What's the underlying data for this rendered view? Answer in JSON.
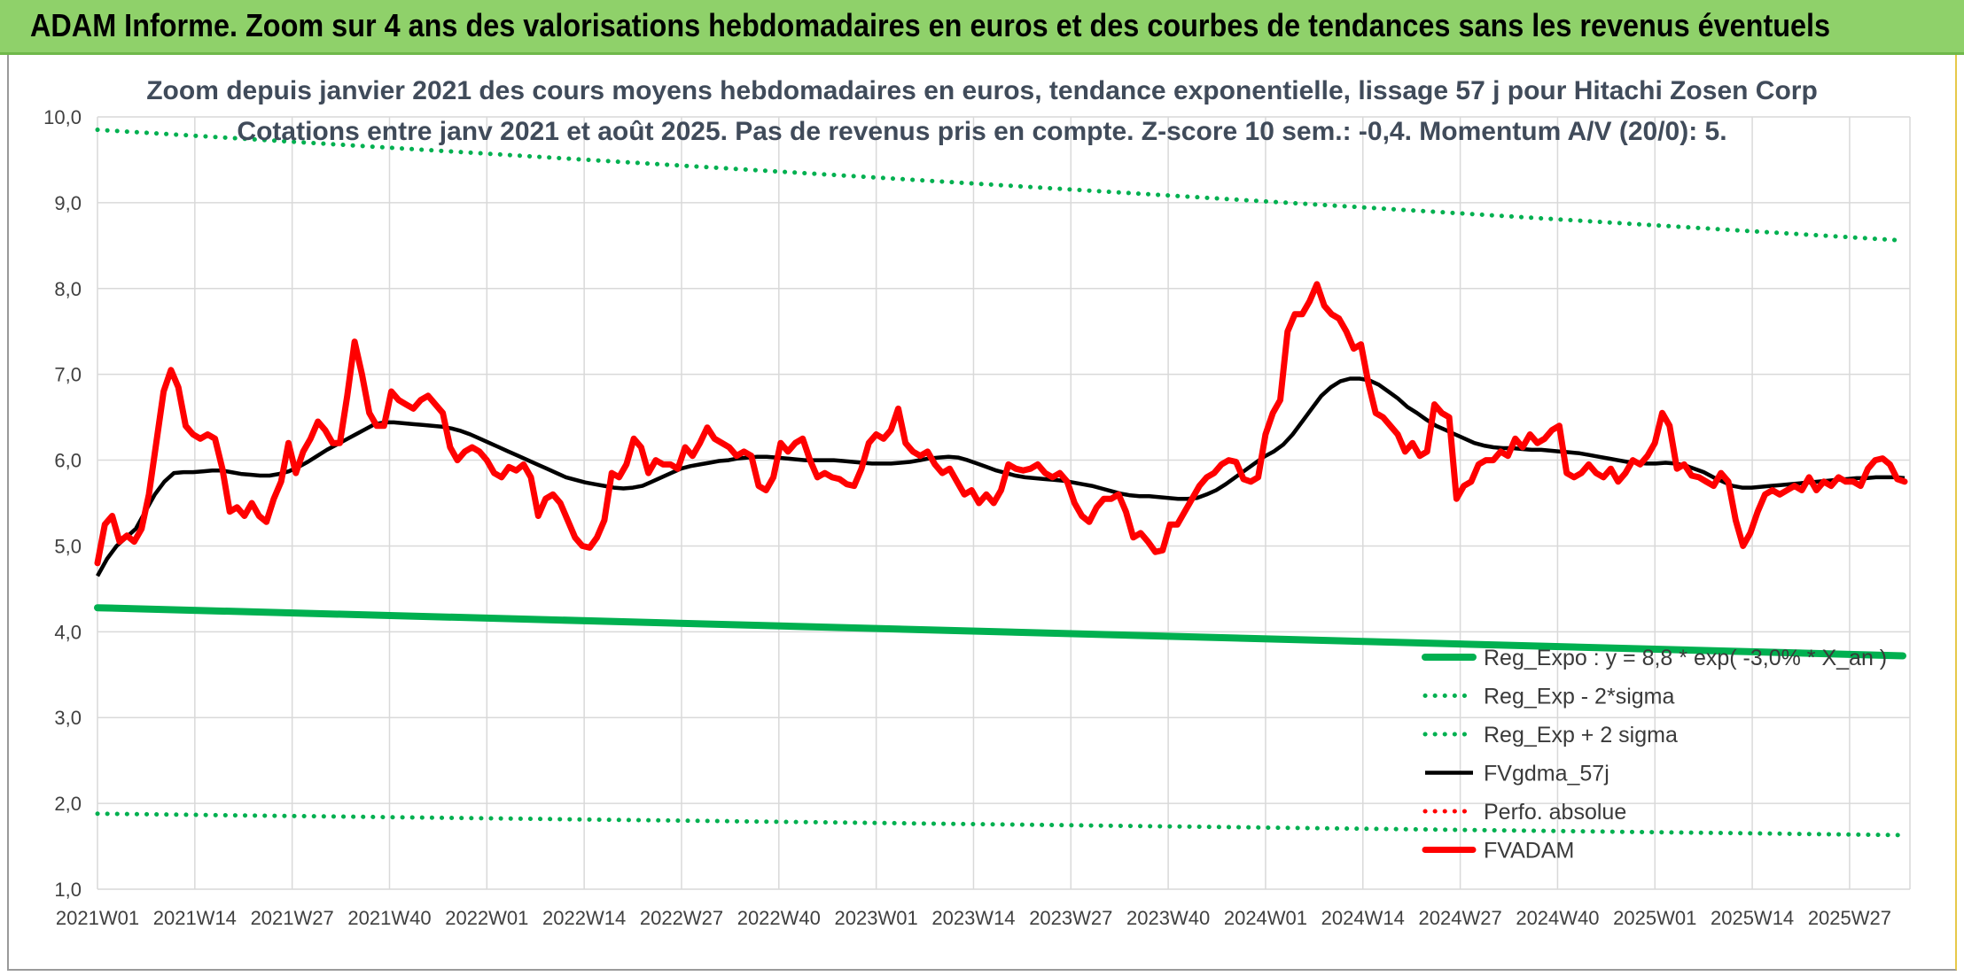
{
  "banner": {
    "title": "ADAM Informe. Zoom sur 4 ans des valorisations hebdomadaires en euros et des courbes de tendances sans les revenus éventuels"
  },
  "chart_data": {
    "type": "line",
    "title_line1": "Zoom depuis janvier 2021 des cours moyens hebdomadaires en euros, tendance exponentielle, lissage 57 j pour Hitachi Zosen Corp",
    "title_line2": "Cotations entre janv 2021 et août 2025. Pas de revenus pris en compte. Z-score 10 sem.: -0,4. Momentum A/V (20/0): 5.",
    "ylim": [
      1.0,
      10.0
    ],
    "y_ticks": [
      "1,0",
      "2,0",
      "3,0",
      "4,0",
      "5,0",
      "6,0",
      "7,0",
      "8,0",
      "9,0",
      "10,0"
    ],
    "x_ticks": [
      "2021W01",
      "2021W14",
      "2021W27",
      "2021W40",
      "2022W01",
      "2022W14",
      "2022W27",
      "2022W40",
      "2023W01",
      "2023W14",
      "2023W27",
      "2023W40",
      "2024W01",
      "2024W14",
      "2024W27",
      "2024W40",
      "2025W01",
      "2025W14",
      "2025W27"
    ],
    "grid": true,
    "legend_position": "bottom-right",
    "colors": {
      "green": "#00b050",
      "black": "#000000",
      "red": "#ff0000",
      "red_dotted": "#ff0000"
    },
    "series": [
      {
        "name": "Reg_Expo : y = 8,8 * exp( -3,0% * X_an )",
        "style": "solid-thick",
        "color": "#00b050",
        "start": 4.28,
        "end": 3.72
      },
      {
        "name": "Reg_Exp - 2*sigma",
        "style": "dotted",
        "color": "#00b050",
        "start": 1.88,
        "end": 1.63
      },
      {
        "name": "Reg_Exp + 2 sigma",
        "style": "dotted",
        "color": "#00b050",
        "start": 9.85,
        "end": 8.56
      },
      {
        "name": "FVgdma_57j",
        "style": "solid",
        "color": "#000000",
        "values": [
          4.65,
          4.85,
          5.0,
          5.1,
          5.2,
          5.4,
          5.6,
          5.75,
          5.85,
          5.86,
          5.86,
          5.87,
          5.88,
          5.88,
          5.86,
          5.84,
          5.83,
          5.82,
          5.82,
          5.84,
          5.87,
          5.92,
          5.98,
          6.05,
          6.12,
          6.18,
          6.24,
          6.3,
          6.36,
          6.42,
          6.44,
          6.44,
          6.43,
          6.42,
          6.41,
          6.4,
          6.39,
          6.37,
          6.34,
          6.3,
          6.25,
          6.2,
          6.15,
          6.1,
          6.05,
          6.0,
          5.95,
          5.9,
          5.85,
          5.8,
          5.77,
          5.74,
          5.72,
          5.7,
          5.68,
          5.67,
          5.68,
          5.7,
          5.75,
          5.8,
          5.85,
          5.9,
          5.93,
          5.95,
          5.97,
          5.99,
          6.0,
          6.02,
          6.03,
          6.04,
          6.04,
          6.03,
          6.02,
          6.01,
          6.0,
          6.0,
          6.0,
          6.0,
          5.99,
          5.98,
          5.97,
          5.96,
          5.96,
          5.96,
          5.97,
          5.98,
          6.0,
          6.02,
          6.03,
          6.04,
          6.03,
          6.0,
          5.96,
          5.92,
          5.88,
          5.85,
          5.82,
          5.8,
          5.79,
          5.78,
          5.77,
          5.76,
          5.74,
          5.72,
          5.7,
          5.67,
          5.64,
          5.61,
          5.59,
          5.58,
          5.58,
          5.57,
          5.56,
          5.55,
          5.55,
          5.56,
          5.6,
          5.65,
          5.72,
          5.8,
          5.88,
          5.96,
          6.04,
          6.1,
          6.18,
          6.3,
          6.45,
          6.6,
          6.75,
          6.85,
          6.92,
          6.95,
          6.95,
          6.93,
          6.88,
          6.8,
          6.72,
          6.62,
          6.55,
          6.47,
          6.4,
          6.35,
          6.3,
          6.25,
          6.2,
          6.17,
          6.15,
          6.14,
          6.14,
          6.13,
          6.12,
          6.12,
          6.11,
          6.1,
          6.09,
          6.08,
          6.06,
          6.04,
          6.02,
          6.0,
          5.98,
          5.97,
          5.96,
          5.96,
          5.97,
          5.96,
          5.94,
          5.9,
          5.86,
          5.8,
          5.75,
          5.7,
          5.68,
          5.68,
          5.69,
          5.7,
          5.71,
          5.72,
          5.73,
          5.74,
          5.75,
          5.76,
          5.77,
          5.78,
          5.79,
          5.79,
          5.8,
          5.8,
          5.8,
          5.79
        ]
      },
      {
        "name": "Perfo. absolue",
        "style": "dotted",
        "color": "#ff0000"
      },
      {
        "name": "FVADAM",
        "style": "solid-thick",
        "color": "#ff0000",
        "values": [
          4.8,
          5.25,
          5.35,
          5.05,
          5.12,
          5.05,
          5.2,
          5.6,
          6.2,
          6.8,
          7.05,
          6.85,
          6.4,
          6.3,
          6.25,
          6.3,
          6.25,
          5.9,
          5.4,
          5.45,
          5.35,
          5.5,
          5.35,
          5.28,
          5.55,
          5.75,
          6.2,
          5.85,
          6.1,
          6.25,
          6.45,
          6.35,
          6.2,
          6.2,
          6.75,
          7.38,
          7.0,
          6.55,
          6.4,
          6.4,
          6.8,
          6.7,
          6.65,
          6.6,
          6.7,
          6.75,
          6.65,
          6.55,
          6.15,
          6.0,
          6.1,
          6.15,
          6.1,
          6.0,
          5.85,
          5.8,
          5.92,
          5.88,
          5.95,
          5.8,
          5.35,
          5.55,
          5.6,
          5.5,
          5.3,
          5.1,
          5.0,
          4.98,
          5.1,
          5.3,
          5.85,
          5.8,
          5.95,
          6.25,
          6.15,
          5.85,
          6.0,
          5.95,
          5.95,
          5.9,
          6.15,
          6.05,
          6.2,
          6.38,
          6.25,
          6.2,
          6.15,
          6.05,
          6.1,
          6.05,
          5.7,
          5.65,
          5.8,
          6.2,
          6.1,
          6.2,
          6.25,
          6.0,
          5.8,
          5.85,
          5.8,
          5.78,
          5.72,
          5.7,
          5.9,
          6.2,
          6.3,
          6.25,
          6.35,
          6.6,
          6.2,
          6.1,
          6.05,
          6.1,
          5.95,
          5.85,
          5.9,
          5.75,
          5.6,
          5.65,
          5.5,
          5.6,
          5.5,
          5.65,
          5.95,
          5.9,
          5.88,
          5.9,
          5.95,
          5.85,
          5.8,
          5.85,
          5.75,
          5.5,
          5.35,
          5.28,
          5.45,
          5.55,
          5.55,
          5.6,
          5.4,
          5.1,
          5.15,
          5.05,
          4.93,
          4.95,
          5.25,
          5.25,
          5.4,
          5.55,
          5.7,
          5.8,
          5.85,
          5.95,
          6.0,
          5.98,
          5.78,
          5.75,
          5.8,
          6.3,
          6.55,
          6.7,
          7.5,
          7.7,
          7.7,
          7.85,
          8.05,
          7.8,
          7.7,
          7.65,
          7.5,
          7.3,
          7.35,
          6.9,
          6.55,
          6.5,
          6.4,
          6.3,
          6.1,
          6.2,
          6.05,
          6.1,
          6.65,
          6.55,
          6.5,
          5.55,
          5.7,
          5.75,
          5.95,
          6.0,
          6.0,
          6.1,
          6.05,
          6.25,
          6.15,
          6.3,
          6.2,
          6.25,
          6.35,
          6.4,
          5.85,
          5.8,
          5.85,
          5.95,
          5.85,
          5.8,
          5.9,
          5.75,
          5.85,
          6.0,
          5.95,
          6.05,
          6.2,
          6.55,
          6.4,
          5.9,
          5.95,
          5.82,
          5.8,
          5.75,
          5.7,
          5.85,
          5.75,
          5.3,
          5.0,
          5.15,
          5.4,
          5.6,
          5.65,
          5.6,
          5.65,
          5.7,
          5.65,
          5.8,
          5.65,
          5.75,
          5.7,
          5.8,
          5.75,
          5.75,
          5.7,
          5.9,
          6.0,
          6.02,
          5.95,
          5.78,
          5.75
        ]
      }
    ]
  }
}
